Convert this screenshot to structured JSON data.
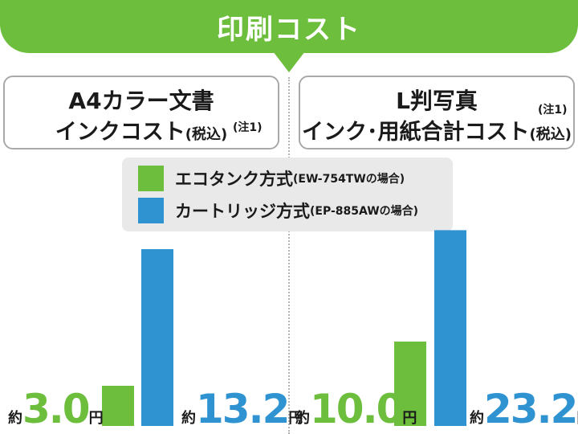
{
  "title": "印刷コスト",
  "panels": [
    {
      "line1": "A4カラー文書",
      "line2_main": "インクコスト",
      "line2_small": "(税込)",
      "note": "(注1)"
    },
    {
      "line1": "L判写真",
      "line2_main": "インク･用紙合計コスト",
      "line2_small": "(税込)",
      "note": "(注1)"
    }
  ],
  "colors": {
    "green": "#6cbe3c",
    "blue": "#2f93d2",
    "legend_bg": "#e9e9e9",
    "border": "#a9a9a9"
  },
  "legend": [
    {
      "label": "エコタンク方式",
      "sub": "(EW-754TWの場合)",
      "color": "#6cbe3c"
    },
    {
      "label": "カートリッジ方式",
      "sub": "(EP-885AWの場合)",
      "color": "#2f93d2"
    }
  ],
  "chart_data": [
    {
      "type": "bar",
      "categories": [
        "エコタンク方式",
        "カートリッジ方式"
      ],
      "values": [
        3.0,
        13.2
      ],
      "labels": [
        "3.0",
        "13.2"
      ],
      "prefix": "約",
      "suffix": "円",
      "colors": [
        "#6cbe3c",
        "#2f93d2"
      ],
      "ylim": [
        0,
        18
      ]
    },
    {
      "type": "bar",
      "categories": [
        "エコタンク方式",
        "カートリッジ方式"
      ],
      "values": [
        10.0,
        23.2
      ],
      "labels": [
        "10.0",
        "23.2"
      ],
      "prefix": "約",
      "suffix": "円",
      "colors": [
        "#6cbe3c",
        "#2f93d2"
      ],
      "ylim": [
        0,
        28
      ]
    }
  ]
}
